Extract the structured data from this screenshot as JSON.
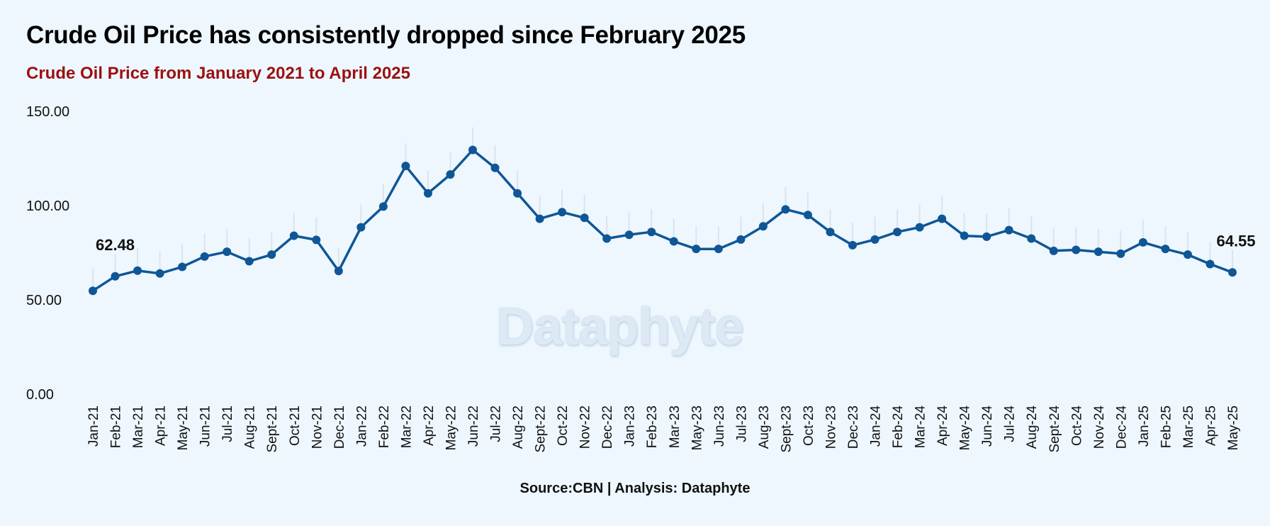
{
  "header": {
    "title": "Crude Oil Price has consistently dropped since February 2025",
    "subtitle": "Crude Oil Price from January 2021 to April 2025"
  },
  "footer": {
    "source": "Source:CBN | Analysis: Dataphyte"
  },
  "watermark": "Dataphyte",
  "colors": {
    "line": "#0f5697",
    "subtitle": "#9b1010",
    "background": "#eef7fe",
    "grid_stem": "#dde3ea"
  },
  "chart_data": {
    "type": "line",
    "title": "Crude Oil Price has consistently dropped since February 2025",
    "subtitle": "Crude Oil Price from January 2021 to April 2025",
    "xlabel": "",
    "ylabel": "",
    "ylim": [
      0,
      150
    ],
    "y_ticks": [
      "0.00",
      "50.00",
      "100.00",
      "150.00"
    ],
    "grid": false,
    "categories": [
      "Jan-21",
      "Feb-21",
      "Mar-21",
      "Apr-21",
      "May-21",
      "Jun-21",
      "Jul-21",
      "Aug-21",
      "Sept-21",
      "Oct-21",
      "Nov-21",
      "Dec-21",
      "Jan-22",
      "Feb-22",
      "Mar-22",
      "Apr-22",
      "May-22",
      "Jun-22",
      "Jul-22",
      "Aug-22",
      "Sept-22",
      "Oct-22",
      "Nov-22",
      "Dec-22",
      "Jan-23",
      "Feb-23",
      "Mar-23",
      "May-23",
      "Jun-23",
      "Jul-23",
      "Aug-23",
      "Sept-23",
      "Oct-23",
      "Nov-23",
      "Dec-23",
      "Jan-24",
      "Feb-24",
      "Mar-24",
      "Apr-24",
      "May-24",
      "Jun-24",
      "Jul-24",
      "Aug-24",
      "Sept-24",
      "Oct-24",
      "Nov-24",
      "Dec-24",
      "Jan-25",
      "Feb-25",
      "Mar-25",
      "Apr-25",
      "May-25"
    ],
    "series": [
      {
        "values": [
          54.8,
          62.48,
          65.5,
          64.0,
          67.5,
          73.0,
          75.5,
          70.5,
          74.0,
          84.0,
          81.8,
          65.3,
          88.5,
          99.5,
          121.0,
          106.5,
          116.5,
          129.5,
          120.0,
          106.5,
          93.0,
          96.5,
          93.5,
          82.5,
          84.5,
          86.0,
          81.0,
          77.0,
          77.0,
          82.0,
          89.0,
          98.0,
          95.0,
          86.0,
          79.0,
          82.0,
          86.0,
          88.5,
          93.0,
          84.0,
          83.5,
          87.0,
          82.5,
          76.0,
          76.5,
          75.5,
          74.5,
          80.5,
          77.0,
          74.0,
          69.0,
          64.55
        ]
      }
    ],
    "data_labels": [
      {
        "index": 1,
        "text": "62.48"
      },
      {
        "index": 51,
        "text": "64.55"
      }
    ]
  }
}
